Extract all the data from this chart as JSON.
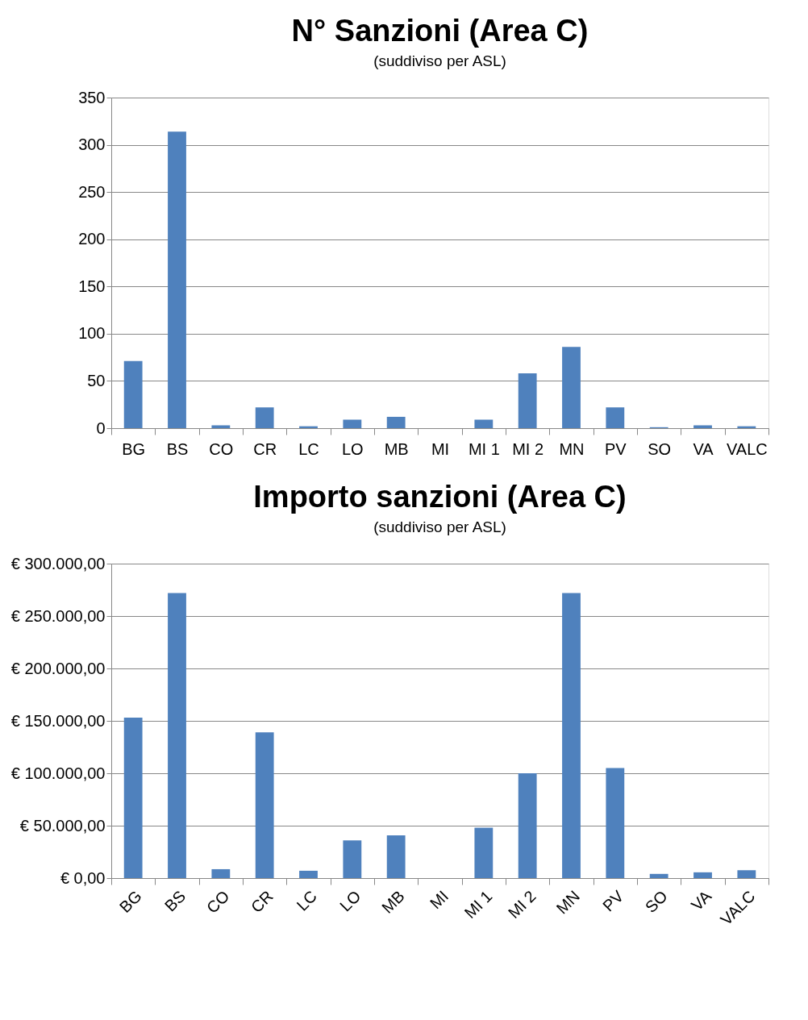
{
  "chart_data": [
    {
      "type": "bar",
      "title": "N° Sanzioni (Area C)",
      "subtitle": "(suddiviso per ASL)",
      "categories": [
        "BG",
        "BS",
        "CO",
        "CR",
        "LC",
        "LO",
        "MB",
        "MI",
        "MI 1",
        "MI 2",
        "MN",
        "PV",
        "SO",
        "VA",
        "VALC"
      ],
      "values": [
        71,
        314,
        3,
        22,
        2,
        9,
        12,
        0,
        9,
        58,
        86,
        22,
        1,
        3,
        2
      ],
      "color": "#4f81bd",
      "ylim": [
        0,
        350
      ],
      "yticks": [
        0,
        50,
        100,
        150,
        200,
        250,
        300,
        350
      ],
      "grid": "y"
    },
    {
      "type": "bar",
      "title": "Importo sanzioni (Area C)",
      "subtitle": "(suddiviso per ASL)",
      "categories": [
        "BG",
        "BS",
        "CO",
        "CR",
        "LC",
        "LO",
        "MB",
        "MI",
        "MI 1",
        "MI 2",
        "MN",
        "PV",
        "SO",
        "VA",
        "VALC"
      ],
      "values": [
        153000,
        272000,
        8500,
        139000,
        7000,
        36000,
        40700,
        0,
        48000,
        100000,
        272000,
        105000,
        4000,
        5500,
        7500
      ],
      "color": "#4f81bd",
      "ylim": [
        0,
        300000
      ],
      "yticks": [
        {
          "value": 0,
          "label": "€ 0,00"
        },
        {
          "value": 50000,
          "label": "€ 50.000,00"
        },
        {
          "value": 100000,
          "label": "€ 100.000,00"
        },
        {
          "value": 150000,
          "label": "€ 150.000,00"
        },
        {
          "value": 200000,
          "label": "€ 200.000,00"
        },
        {
          "value": 250000,
          "label": "€ 250.000,00"
        },
        {
          "value": 300000,
          "label": "€ 300.000,00"
        }
      ],
      "grid": "y"
    }
  ]
}
